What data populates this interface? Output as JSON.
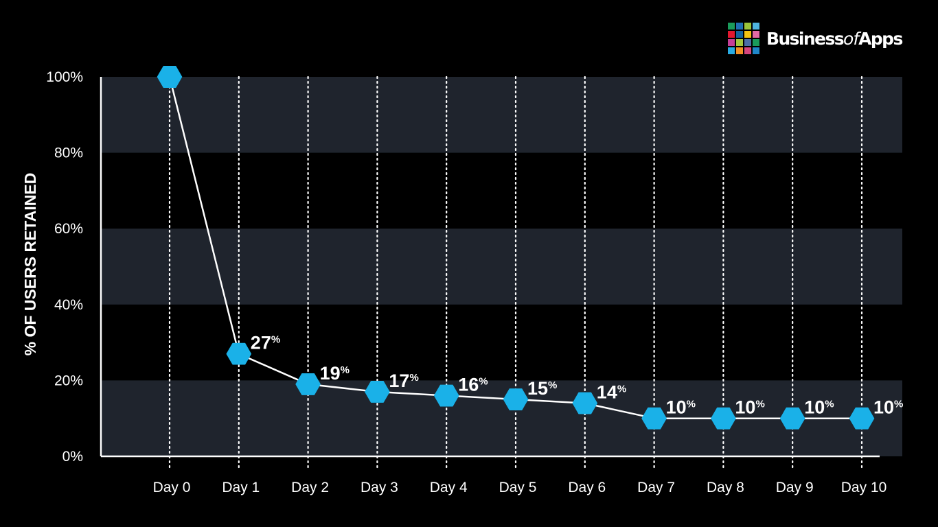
{
  "brand": {
    "name_pre": "Business",
    "name_of": "of",
    "name_post": "Apps",
    "logo_colors": [
      "#1a9b5b",
      "#1f6fb4",
      "#9ac43a",
      "#4fb4e0",
      "#e4172f",
      "#16639d",
      "#f2c311",
      "#e36aa6",
      "#c63f97",
      "#a3c83e",
      "#4b6fa8",
      "#1a9b5b",
      "#29abe2",
      "#f39223",
      "#d7457d",
      "#1f86c8"
    ]
  },
  "chart_data": {
    "type": "line",
    "ylabel": "% OF USERS RETAINED",
    "xlabel": "",
    "categories": [
      "Day 0",
      "Day 1",
      "Day 2",
      "Day 3",
      "Day 4",
      "Day 5",
      "Day 6",
      "Day 7",
      "Day 8",
      "Day 9",
      "Day 10"
    ],
    "series": [
      {
        "values": [
          100,
          27,
          19,
          17,
          16,
          15,
          14,
          10,
          10,
          10,
          10
        ]
      }
    ],
    "data_labels": [
      "",
      "27",
      "19",
      "17",
      "16",
      "15",
      "14",
      "10",
      "10",
      "10",
      "10"
    ],
    "label_suffix": "%",
    "y_ticks": [
      0,
      20,
      40,
      60,
      80,
      100
    ],
    "y_tick_labels": [
      "0%",
      "20%",
      "40%",
      "60%",
      "80%",
      "100%"
    ],
    "ylim": [
      0,
      100
    ],
    "grid": "alternating horizontal bands",
    "colors": {
      "background": "#000000",
      "band": "#1f242d",
      "line": "#ffffff",
      "marker": "#1ab1e8"
    }
  }
}
